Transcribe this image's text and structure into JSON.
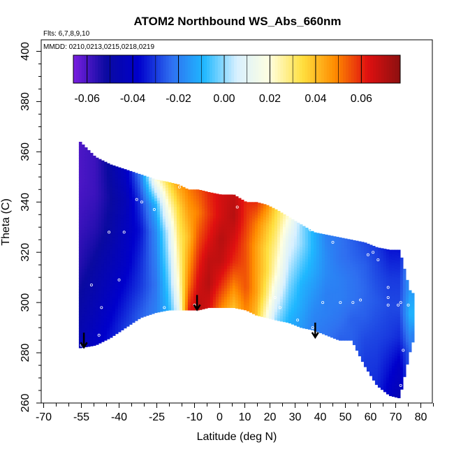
{
  "chart_data": {
    "type": "heatmap",
    "title": "ATOM2 Northbound WS_Abs_660nm",
    "flights_label": "Flts: 6,7,8,9,10",
    "dates_label": "MMDD: 0210,0213,0215,0218,0219",
    "xlabel": "Latitude (deg N)",
    "ylabel": "Theta (C)",
    "xlim": [
      -70,
      85
    ],
    "ylim": [
      260,
      405
    ],
    "x_ticks": [
      -70,
      -55,
      -40,
      -25,
      -10,
      0,
      10,
      20,
      30,
      40,
      50,
      60,
      70,
      80
    ],
    "y_ticks": [
      260,
      280,
      300,
      320,
      340,
      360,
      380,
      400
    ],
    "colorbar": {
      "min": -0.066,
      "max": 0.077,
      "ticks": [
        -0.06,
        -0.04,
        -0.02,
        0.0,
        0.02,
        0.04,
        0.06
      ],
      "tick_labels": [
        "-0.06",
        "-0.04",
        "-0.02",
        "0.00",
        "0.02",
        "0.04",
        "0.06"
      ],
      "colors": [
        "#7a1fe0",
        "#0a0aa0",
        "#0000cc",
        "#2f6ff0",
        "#1fb8ff",
        "#d8f0ff",
        "#ffffe0",
        "#ffe040",
        "#ff8c00",
        "#e01010",
        "#8b1010"
      ]
    },
    "column_profiles": [
      {
        "lat": -56,
        "bottom": 282,
        "top": 364,
        "values": [
          -0.045,
          -0.05,
          -0.055,
          -0.058,
          -0.06,
          -0.06
        ]
      },
      {
        "lat": -50,
        "bottom": 283,
        "top": 358,
        "values": [
          -0.04,
          -0.045,
          -0.05,
          -0.055,
          -0.058,
          -0.058
        ]
      },
      {
        "lat": -44,
        "bottom": 286,
        "top": 355,
        "values": [
          -0.035,
          -0.04,
          -0.045,
          -0.05,
          -0.052,
          -0.05
        ]
      },
      {
        "lat": -38,
        "bottom": 290,
        "top": 353,
        "values": [
          -0.03,
          -0.035,
          -0.04,
          -0.042,
          -0.045,
          -0.04
        ]
      },
      {
        "lat": -32,
        "bottom": 294,
        "top": 351,
        "values": [
          -0.025,
          -0.03,
          -0.032,
          -0.035,
          -0.03,
          -0.02
        ]
      },
      {
        "lat": -26,
        "bottom": 296,
        "top": 349,
        "values": [
          -0.02,
          -0.022,
          -0.02,
          -0.018,
          -0.01,
          0.02
        ]
      },
      {
        "lat": -21,
        "bottom": 297,
        "top": 348,
        "values": [
          -0.01,
          -0.005,
          0.0,
          0.005,
          0.02,
          0.035
        ]
      },
      {
        "lat": -17,
        "bottom": 297,
        "top": 347,
        "values": [
          0.01,
          0.02,
          0.025,
          0.03,
          0.035,
          0.045
        ]
      },
      {
        "lat": -13,
        "bottom": 297,
        "top": 345,
        "values": [
          0.06,
          0.05,
          0.045,
          0.04,
          0.045,
          0.05
        ]
      },
      {
        "lat": -9,
        "bottom": 297,
        "top": 345,
        "values": [
          0.07,
          0.065,
          0.06,
          0.055,
          0.05,
          0.055
        ]
      },
      {
        "lat": -5,
        "bottom": 298,
        "top": 344,
        "values": [
          0.065,
          0.07,
          0.068,
          0.062,
          0.058,
          0.06
        ]
      },
      {
        "lat": 0,
        "bottom": 298,
        "top": 343,
        "values": [
          0.05,
          0.06,
          0.068,
          0.07,
          0.065,
          0.065
        ]
      },
      {
        "lat": 5,
        "bottom": 298,
        "top": 343,
        "values": [
          0.04,
          0.05,
          0.06,
          0.065,
          0.07,
          0.068
        ]
      },
      {
        "lat": 10,
        "bottom": 297,
        "top": 340,
        "values": [
          0.05,
          0.055,
          0.055,
          0.055,
          0.058,
          0.06
        ]
      },
      {
        "lat": 14,
        "bottom": 295,
        "top": 340,
        "values": [
          0.04,
          0.045,
          0.045,
          0.045,
          0.05,
          0.06
        ]
      },
      {
        "lat": 18,
        "bottom": 294,
        "top": 339,
        "values": [
          0.02,
          0.03,
          0.035,
          0.035,
          0.04,
          0.05
        ]
      },
      {
        "lat": 22,
        "bottom": 293,
        "top": 337,
        "values": [
          0.0,
          0.01,
          0.02,
          0.025,
          0.03,
          0.035
        ]
      },
      {
        "lat": 27,
        "bottom": 292,
        "top": 334,
        "values": [
          -0.01,
          -0.005,
          0.0,
          0.005,
          0.01,
          0.02
        ]
      },
      {
        "lat": 32,
        "bottom": 290,
        "top": 331,
        "values": [
          -0.015,
          -0.012,
          -0.01,
          -0.005,
          0.0,
          0.0
        ]
      },
      {
        "lat": 37,
        "bottom": 289,
        "top": 328,
        "values": [
          -0.02,
          -0.018,
          -0.015,
          -0.012,
          -0.01,
          -0.01
        ]
      },
      {
        "lat": 42,
        "bottom": 287,
        "top": 327,
        "values": [
          -0.022,
          -0.02,
          -0.02,
          -0.018,
          -0.018,
          -0.02
        ]
      },
      {
        "lat": 47,
        "bottom": 285,
        "top": 326,
        "values": [
          -0.025,
          -0.022,
          -0.02,
          -0.02,
          -0.022,
          -0.022
        ]
      },
      {
        "lat": 52,
        "bottom": 285,
        "top": 325,
        "values": [
          -0.025,
          -0.025,
          -0.022,
          -0.022,
          -0.024,
          -0.025
        ]
      },
      {
        "lat": 57,
        "bottom": 275,
        "top": 324,
        "values": [
          -0.03,
          -0.028,
          -0.025,
          -0.024,
          -0.025,
          -0.028
        ]
      },
      {
        "lat": 62,
        "bottom": 267,
        "top": 322,
        "values": [
          -0.032,
          -0.03,
          -0.028,
          -0.026,
          -0.028,
          -0.03
        ]
      },
      {
        "lat": 67,
        "bottom": 263,
        "top": 321,
        "values": [
          -0.04,
          -0.035,
          -0.03,
          -0.028,
          -0.03,
          -0.035
        ]
      },
      {
        "lat": 71,
        "bottom": 262,
        "top": 321,
        "values": [
          -0.045,
          -0.04,
          -0.032,
          -0.028,
          -0.03,
          -0.035
        ]
      },
      {
        "lat": 75,
        "bottom": 280,
        "top": 305,
        "values": [
          -0.025,
          -0.02,
          -0.015,
          -0.01,
          -0.012,
          -0.015
        ]
      },
      {
        "lat": 77,
        "bottom": 287,
        "top": 303,
        "values": [
          -0.02,
          -0.015,
          -0.01,
          -0.01,
          -0.012,
          -0.015
        ]
      }
    ],
    "sample_points": [
      [
        -55,
        283
      ],
      [
        -48,
        287
      ],
      [
        -51,
        307
      ],
      [
        -47,
        298
      ],
      [
        -44,
        328
      ],
      [
        -40,
        309
      ],
      [
        -38,
        328
      ],
      [
        -33,
        341
      ],
      [
        -31,
        340
      ],
      [
        -26,
        337
      ],
      [
        -22,
        298
      ],
      [
        -16,
        346
      ],
      [
        -10,
        299
      ],
      [
        7,
        338
      ],
      [
        11,
        343
      ],
      [
        22,
        302
      ],
      [
        24,
        298
      ],
      [
        31,
        293
      ],
      [
        36,
        329
      ],
      [
        37,
        290
      ],
      [
        41,
        300
      ],
      [
        45,
        324
      ],
      [
        48,
        300
      ],
      [
        53,
        300
      ],
      [
        56,
        301
      ],
      [
        59,
        319
      ],
      [
        61,
        320
      ],
      [
        63,
        317
      ],
      [
        67,
        306
      ],
      [
        67,
        302
      ],
      [
        67,
        299
      ],
      [
        71,
        299
      ],
      [
        72,
        267
      ],
      [
        73,
        281
      ],
      [
        72,
        300
      ],
      [
        75,
        299
      ]
    ],
    "arrows": [
      {
        "lat": -54,
        "theta": 288
      },
      {
        "lat": -9,
        "theta": 303
      },
      {
        "lat": 38,
        "theta": 292
      }
    ]
  }
}
